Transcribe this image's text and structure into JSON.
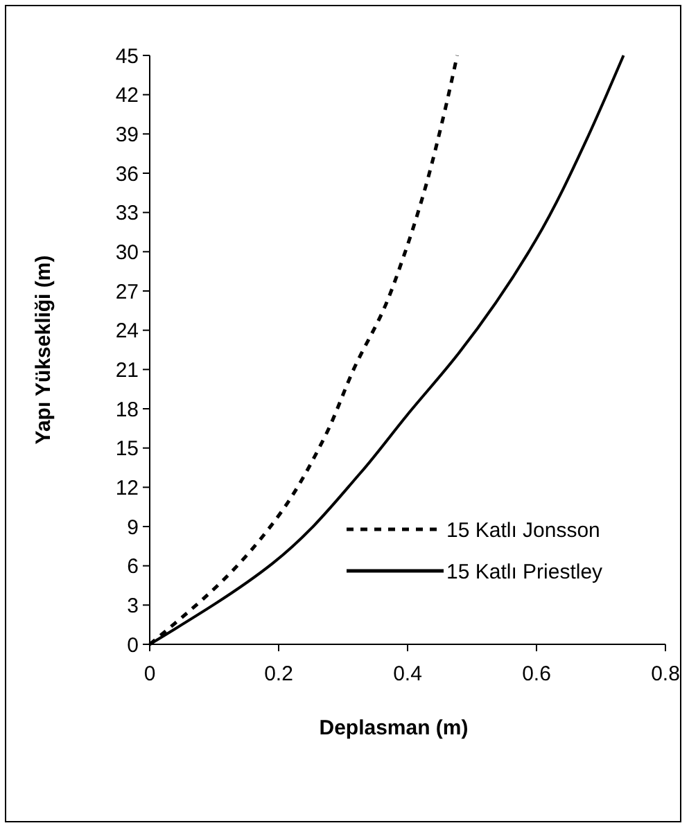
{
  "chart_data": {
    "type": "line",
    "xlabel": "Deplasman (m)",
    "ylabel": "Yapı Yüksekliği (m)",
    "xlim": [
      0,
      0.8
    ],
    "xticks": [
      {
        "value": 0,
        "label": "0"
      },
      {
        "value": 0.2,
        "label": "0.2"
      },
      {
        "value": 0.4,
        "label": "0.4"
      },
      {
        "value": 0.6,
        "label": "0.6"
      },
      {
        "value": 0.8,
        "label": "0.8"
      }
    ],
    "ylim": [
      0,
      45
    ],
    "yticks": [
      0,
      3,
      6,
      9,
      12,
      15,
      18,
      21,
      24,
      27,
      30,
      33,
      36,
      39,
      42,
      45
    ],
    "legend": "right",
    "grid": false,
    "marker": "none",
    "series": [
      {
        "name": "15 Katlı Jonsson",
        "color": "#000000",
        "line_style": "dashed",
        "x": [
          0,
          0.126,
          0.198,
          0.27,
          0.32,
          0.363,
          0.395,
          0.427,
          0.456,
          0.477
        ],
        "values": [
          0,
          5.5,
          9.7,
          15.7,
          21.4,
          25.6,
          29.8,
          34.8,
          40.4,
          45
        ]
      },
      {
        "name": "15 Katlı Priestley",
        "color": "#000000",
        "line_style": "solid",
        "x": [
          0,
          0.191,
          0.327,
          0.399,
          0.477,
          0.599,
          0.678,
          0.707,
          0.735
        ],
        "values": [
          0,
          6.2,
          13.1,
          17.5,
          22.1,
          30.9,
          38.6,
          41.8,
          45
        ]
      }
    ]
  }
}
